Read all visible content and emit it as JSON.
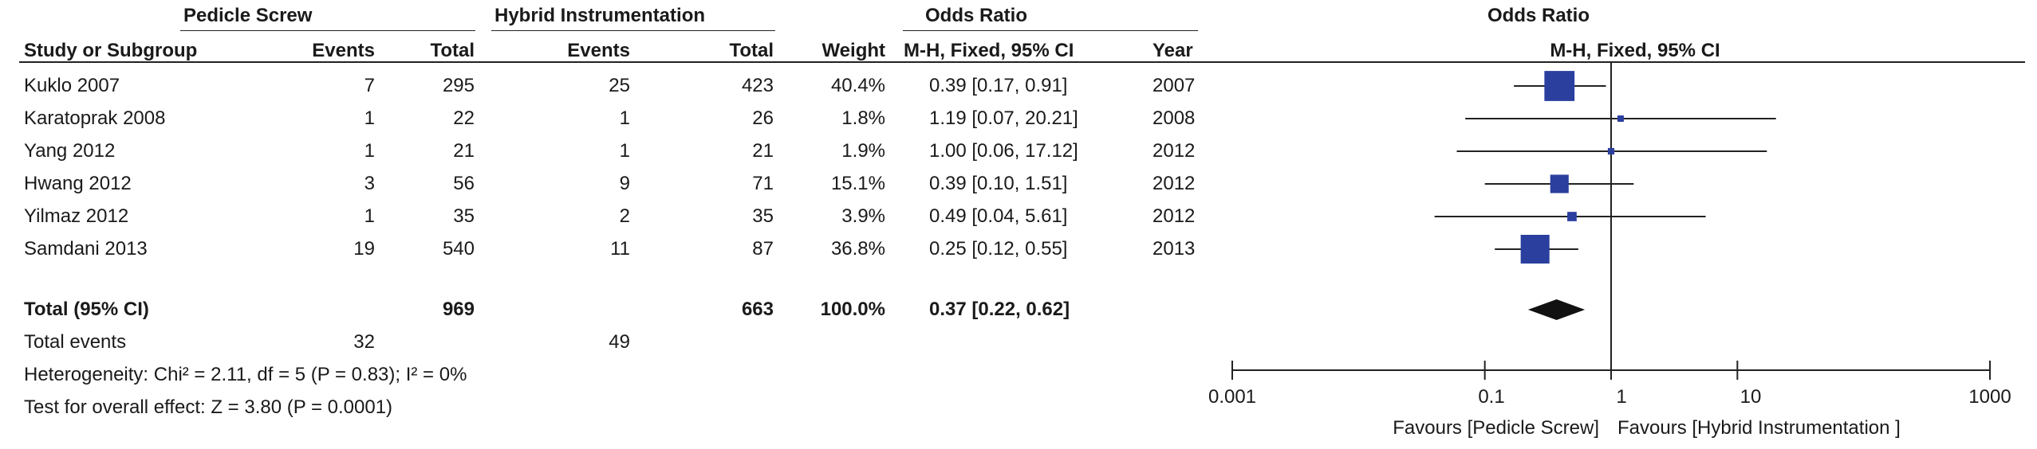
{
  "headers": {
    "group1": "Pedicle Screw",
    "group2": "Hybrid Instrumentation",
    "odds_ratio": "Odds Ratio",
    "study": "Study or Subgroup",
    "events": "Events",
    "total": "Total",
    "weight": "Weight",
    "method": "M-H, Fixed, 95% CI",
    "year": "Year",
    "plot_title": "Odds Ratio",
    "plot_method": "M-H, Fixed, 95% CI"
  },
  "studies": [
    {
      "name": "Kuklo 2007",
      "e1": "7",
      "n1": "295",
      "e2": "25",
      "n2": "423",
      "weight": "40.4%",
      "ci": "0.39 [0.17, 0.91]",
      "year": "2007"
    },
    {
      "name": "Karatoprak 2008",
      "e1": "1",
      "n1": "22",
      "e2": "1",
      "n2": "26",
      "weight": "1.8%",
      "ci": "1.19 [0.07, 20.21]",
      "year": "2008"
    },
    {
      "name": "Yang 2012",
      "e1": "1",
      "n1": "21",
      "e2": "1",
      "n2": "21",
      "weight": "1.9%",
      "ci": "1.00 [0.06, 17.12]",
      "year": "2012"
    },
    {
      "name": "Hwang 2012",
      "e1": "3",
      "n1": "56",
      "e2": "9",
      "n2": "71",
      "weight": "15.1%",
      "ci": "0.39 [0.10, 1.51]",
      "year": "2012"
    },
    {
      "name": "Yilmaz 2012",
      "e1": "1",
      "n1": "35",
      "e2": "2",
      "n2": "35",
      "weight": "3.9%",
      "ci": "0.49 [0.04, 5.61]",
      "year": "2012"
    },
    {
      "name": "Samdani 2013",
      "e1": "19",
      "n1": "540",
      "e2": "11",
      "n2": "87",
      "weight": "36.8%",
      "ci": "0.25 [0.12, 0.55]",
      "year": "2013"
    }
  ],
  "total": {
    "label": "Total (95% CI)",
    "n1": "969",
    "n2": "663",
    "weight": "100.0%",
    "ci": "0.37 [0.22, 0.62]"
  },
  "total_events": {
    "label": "Total events",
    "e1": "32",
    "e2": "49"
  },
  "heterogeneity": "Heterogeneity: Chi² = 2.11, df = 5 (P = 0.83); I² = 0%",
  "overall_effect": "Test for overall effect: Z = 3.80 (P = 0.0001)",
  "axis": {
    "ticks": [
      "0.001",
      "0.1",
      "1",
      "10",
      "1000"
    ],
    "favours_left": "Favours [Pedicle Screw]",
    "favours_right": "Favours [Hybrid Instrumentation ]"
  },
  "chart_data": {
    "type": "forest",
    "title": "Odds Ratio",
    "subtitle": "M-H, Fixed, 95% CI",
    "scale": "log",
    "xlim": [
      0.001,
      1000
    ],
    "reference_line": 1,
    "studies": [
      {
        "name": "Kuklo 2007",
        "or": 0.39,
        "lo": 0.17,
        "hi": 0.91,
        "weight": 40.4
      },
      {
        "name": "Karatoprak 2008",
        "or": 1.19,
        "lo": 0.07,
        "hi": 20.21,
        "weight": 1.8
      },
      {
        "name": "Yang 2012",
        "or": 1.0,
        "lo": 0.06,
        "hi": 17.12,
        "weight": 1.9
      },
      {
        "name": "Hwang 2012",
        "or": 0.39,
        "lo": 0.1,
        "hi": 1.51,
        "weight": 15.1
      },
      {
        "name": "Yilmaz 2012",
        "or": 0.49,
        "lo": 0.04,
        "hi": 5.61,
        "weight": 3.9
      },
      {
        "name": "Samdani 2013",
        "or": 0.25,
        "lo": 0.12,
        "hi": 0.55,
        "weight": 36.8
      }
    ],
    "pooled": {
      "or": 0.37,
      "lo": 0.22,
      "hi": 0.62
    },
    "colors": {
      "square": "#2a3f9e",
      "diamond": "#111111",
      "line": "#222222"
    }
  }
}
